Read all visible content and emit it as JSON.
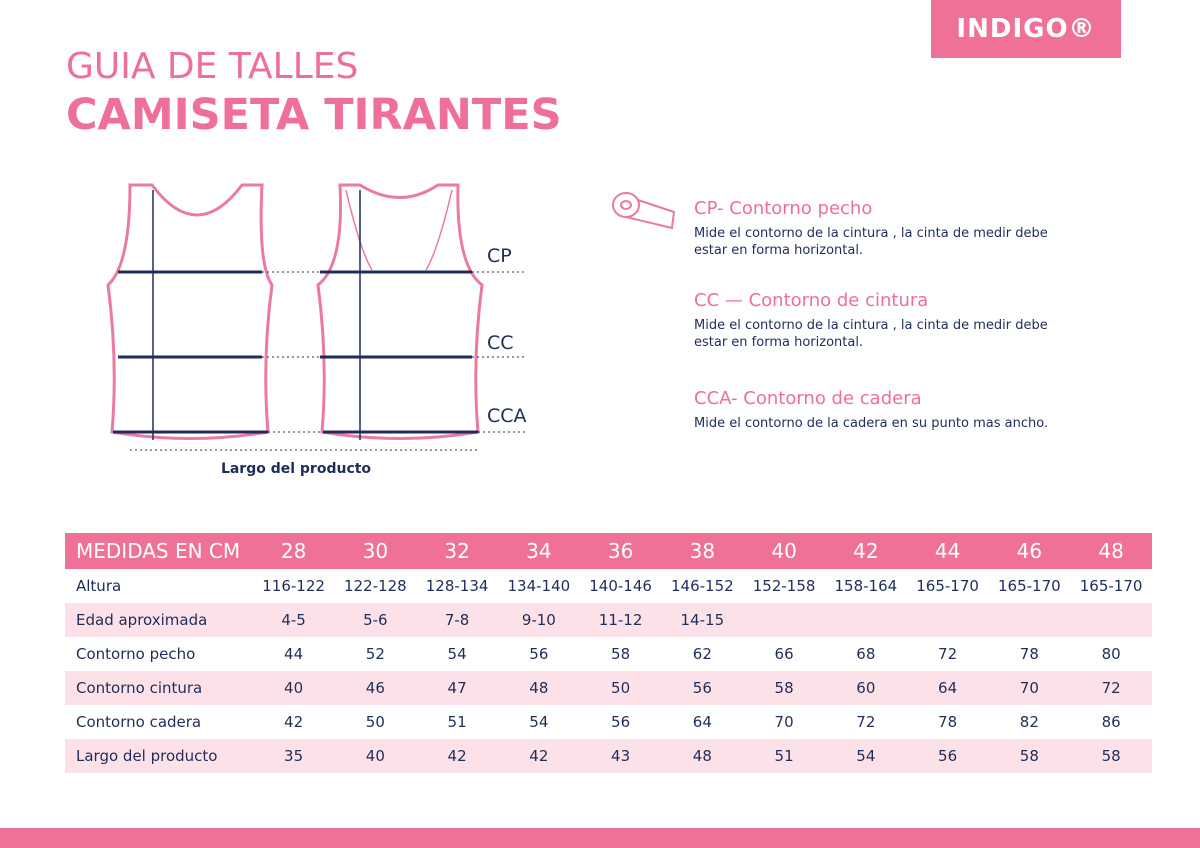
{
  "logo": "INDIGO®",
  "header": {
    "title": "GUIA DE TALLES",
    "subtitle": "CAMISETA TIRANTES"
  },
  "diagram": {
    "labels": [
      "CP",
      "CC",
      "CCA"
    ],
    "caption": "Largo del producto"
  },
  "legend": [
    {
      "title": "CP- Contorno pecho",
      "text": "Mide el contorno de la cintura , la cinta de medir debe estar en forma horizontal."
    },
    {
      "title": "CC — Contorno de cintura",
      "text": "Mide el contorno de la cintura , la cinta de medir debe estar en forma horizontal."
    },
    {
      "title": "CCA- Contorno de cadera",
      "text": "Mide el contorno de la cadera en su punto mas ancho."
    }
  ],
  "table": {
    "header": [
      "MEDIDAS EN CM",
      28,
      30,
      32,
      34,
      36,
      38,
      40,
      42,
      44,
      46,
      48
    ],
    "rows": [
      [
        "Altura",
        "116-122",
        "122-128",
        "128-134",
        "134-140",
        "140-146",
        "146-152",
        "152-158",
        "158-164",
        "165-170",
        "165-170",
        "165-170"
      ],
      [
        "Edad aproximada",
        "4-5",
        "5-6",
        "7-8",
        "9-10",
        "11-12",
        "14-15",
        null,
        null,
        null,
        null,
        null
      ],
      [
        "Contorno pecho",
        44,
        52,
        54,
        56,
        58,
        62,
        66,
        68,
        72,
        78,
        80
      ],
      [
        "Contorno cintura",
        40,
        46,
        47,
        48,
        50,
        56,
        58,
        60,
        64,
        70,
        72
      ],
      [
        "Contorno cadera",
        42,
        50,
        51,
        54,
        56,
        64,
        70,
        72,
        78,
        82,
        86
      ],
      [
        "Largo del producto",
        35,
        40,
        42,
        42,
        43,
        48,
        51,
        54,
        56,
        58,
        58
      ]
    ]
  }
}
